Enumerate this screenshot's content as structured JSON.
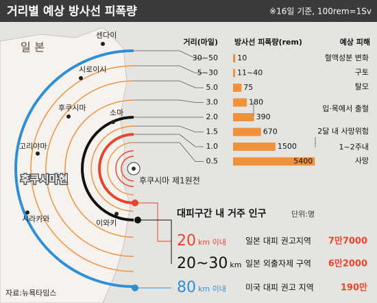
{
  "header": {
    "title": "거리별 예상 방사선 피폭량",
    "note": "※16일 기준, 100rem=1Sv"
  },
  "map": {
    "labels": [
      "일 본",
      "센다이",
      "시로이시",
      "후쿠시마",
      "소마",
      "고리야마",
      "후쿠시마현",
      "시라카와",
      "이와키"
    ],
    "plant": "후쿠시마 제1원전"
  },
  "table": {
    "headers": [
      "거리(마일)",
      "방사선 피폭량(rem)",
      "예상 피해"
    ],
    "rows": [
      {
        "distance": "30~50",
        "dose": 10
      },
      {
        "distance": "5~30",
        "dose": "11~40"
      },
      {
        "distance": "5.0",
        "dose": 75
      },
      {
        "distance": "3.0",
        "dose": 180
      },
      {
        "distance": "2.0",
        "dose": 390
      },
      {
        "distance": "1.5",
        "dose": 670
      },
      {
        "distance": "1.0",
        "dose": 1500
      },
      {
        "distance": "0.5",
        "dose": 5400
      }
    ],
    "effects": [
      "혈액성분 변화",
      "구토",
      "탈모",
      "입·목에서 출혈",
      "2달 내 사망위험",
      "1~2주내",
      "사망"
    ]
  },
  "evacuation": {
    "title": "대피구간 내 거주 인구",
    "unit": "단위:명",
    "rows": [
      {
        "distance": "20",
        "unit": "km 이내",
        "area": "일본 대피 권고지역",
        "population": "7만7000"
      },
      {
        "distance": "20~30",
        "unit": "km",
        "area": "일본 외출자제 구역",
        "population": "6만2000"
      },
      {
        "distance": "80",
        "unit": "km 이내",
        "area": "미국 대피 권고 지역",
        "population": "190만"
      }
    ]
  },
  "source": "자료:뉴욕타임스"
}
